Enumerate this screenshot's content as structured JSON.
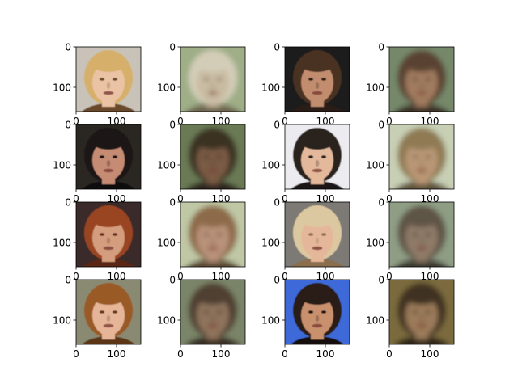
{
  "figure": {
    "type": "image-grid",
    "rows": 4,
    "cols": 4,
    "background": "#ffffff",
    "x_ticks": [
      "0",
      "100"
    ],
    "y_ticks": [
      "0",
      "100"
    ],
    "panels": [
      {
        "row": 0,
        "col": 0,
        "kind": "photo",
        "subject": "blonde woman with bangs, smiling",
        "bg": "#c9c2b8",
        "skin": "#eac2a4",
        "hair": "#d6b06a",
        "dark": "#6b4a2c"
      },
      {
        "row": 0,
        "col": 1,
        "kind": "reconstruction",
        "subject": "blurry pale face",
        "bg": "#9fae87",
        "skin": "#c9bba2",
        "hair": "#d3cdb8",
        "dark": "#6e6550"
      },
      {
        "row": 0,
        "col": 2,
        "kind": "photo",
        "subject": "man with short brown hair",
        "bg": "#1a1a1a",
        "skin": "#c28d6e",
        "hair": "#4a3220",
        "dark": "#2b1d14"
      },
      {
        "row": 0,
        "col": 3,
        "kind": "reconstruction",
        "subject": "blurry face",
        "bg": "#76886a",
        "skin": "#a17c5e",
        "hair": "#5a4330",
        "dark": "#3d3225"
      },
      {
        "row": 1,
        "col": 0,
        "kind": "photo",
        "subject": "woman with long dark hair and earrings",
        "bg": "#2a2622",
        "skin": "#c58b73",
        "hair": "#1c1612",
        "dark": "#100c0a"
      },
      {
        "row": 1,
        "col": 1,
        "kind": "reconstruction",
        "subject": "blurry dark face",
        "bg": "#6b7a55",
        "skin": "#7a5c44",
        "hair": "#3b3022",
        "dark": "#2a241a"
      },
      {
        "row": 1,
        "col": 2,
        "kind": "photo",
        "subject": "young man with dark hair",
        "bg": "#ecebef",
        "skin": "#e4b99b",
        "hair": "#2a201c",
        "dark": "#1a1412"
      },
      {
        "row": 1,
        "col": 3,
        "kind": "reconstruction",
        "subject": "blurry face with light hair",
        "bg": "#c7cfb4",
        "skin": "#b99776",
        "hair": "#8f7a52",
        "dark": "#5c5038"
      },
      {
        "row": 2,
        "col": 0,
        "kind": "photo",
        "subject": "woman with curly red hair",
        "bg": "#3a2c2a",
        "skin": "#d49d7e",
        "hair": "#9a4421",
        "dark": "#5a2612"
      },
      {
        "row": 2,
        "col": 1,
        "kind": "reconstruction",
        "subject": "blurry face",
        "bg": "#bfc7a5",
        "skin": "#b9927a",
        "hair": "#8d6b48",
        "dark": "#5b4a36"
      },
      {
        "row": 2,
        "col": 2,
        "kind": "photo",
        "subject": "blonde woman smiling",
        "bg": "#7d7a74",
        "skin": "#e5b79a",
        "hair": "#dcc8a0",
        "dark": "#8a6e4e"
      },
      {
        "row": 2,
        "col": 3,
        "kind": "reconstruction",
        "subject": "blurry face",
        "bg": "#8e9d84",
        "skin": "#8f7a68",
        "hair": "#5f5446",
        "dark": "#3e3a30"
      },
      {
        "row": 3,
        "col": 0,
        "kind": "photo",
        "subject": "woman with auburn hair",
        "bg": "#8a8a73",
        "skin": "#e6b598",
        "hair": "#9a5a28",
        "dark": "#5c3418"
      },
      {
        "row": 3,
        "col": 1,
        "kind": "reconstruction",
        "subject": "blurry face",
        "bg": "#7a8468",
        "skin": "#8f735c",
        "hair": "#4f4030",
        "dark": "#352c22"
      },
      {
        "row": 3,
        "col": 2,
        "kind": "photo",
        "subject": "woman with dark hair, blue background",
        "bg": "#3d6ad8",
        "skin": "#c9906e",
        "hair": "#2a1a12",
        "dark": "#160e0a"
      },
      {
        "row": 3,
        "col": 3,
        "kind": "reconstruction",
        "subject": "blurry face with dark hair",
        "bg": "#7a6a3c",
        "skin": "#9b7b5a",
        "hair": "#3f3020",
        "dark": "#2a2016"
      }
    ]
  }
}
